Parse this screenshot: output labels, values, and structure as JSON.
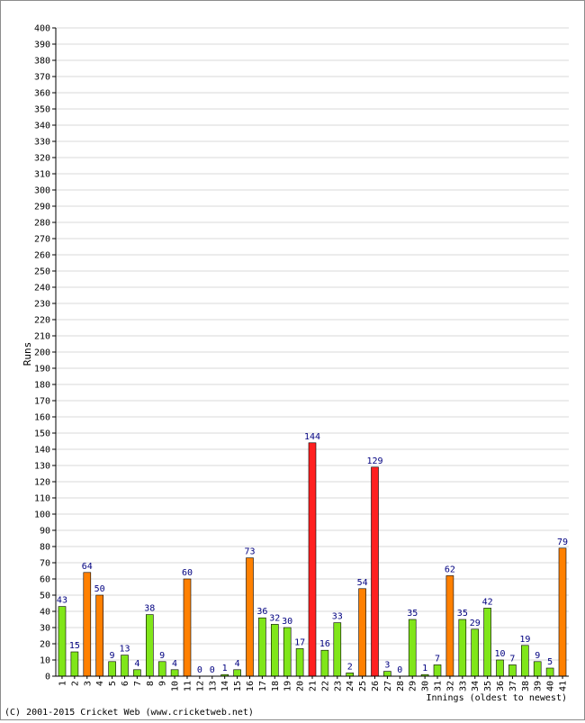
{
  "chart_data": {
    "type": "bar",
    "title": "",
    "ylabel": "Runs",
    "xlabel": "Innings (oldest to newest)",
    "ylim": [
      0,
      400
    ],
    "ytick_step": 10,
    "grid": true,
    "legend": "none",
    "categories": [
      "1",
      "2",
      "3",
      "4",
      "5",
      "6",
      "7",
      "8",
      "9",
      "10",
      "11",
      "12",
      "13",
      "14",
      "15",
      "16",
      "17",
      "18",
      "19",
      "20",
      "21",
      "22",
      "23",
      "24",
      "25",
      "26",
      "27",
      "28",
      "29",
      "30",
      "31",
      "32",
      "33",
      "34",
      "35",
      "36",
      "37",
      "38",
      "39",
      "40",
      "41"
    ],
    "values": [
      43,
      15,
      64,
      50,
      9,
      13,
      4,
      38,
      9,
      4,
      60,
      0,
      0,
      1,
      4,
      73,
      36,
      32,
      30,
      17,
      144,
      16,
      33,
      2,
      54,
      129,
      3,
      0,
      35,
      1,
      7,
      62,
      35,
      29,
      42,
      10,
      7,
      19,
      9,
      5,
      79
    ],
    "data_labels": [
      "43",
      "15",
      "64",
      "50",
      "9",
      "13",
      "4",
      "38",
      "9",
      "4",
      "60",
      "0",
      "0",
      "1",
      "4",
      "73",
      "36",
      "32",
      "30",
      "17",
      "144",
      "16",
      "33",
      "2",
      "54",
      "129",
      "3",
      "0",
      "35",
      "1",
      "7",
      "62",
      "35",
      "29",
      "42",
      "10",
      "7",
      "19",
      "9",
      "5",
      "79"
    ],
    "colors": {
      "under_50": "#80e619",
      "fifty": "#ff8000",
      "hundred": "#ff2020",
      "label": "#000080",
      "grid": "#d8d8d8",
      "axis": "#000000"
    }
  },
  "footer": {
    "copyright": "(C) 2001-2015 Cricket Web (www.cricketweb.net)"
  }
}
